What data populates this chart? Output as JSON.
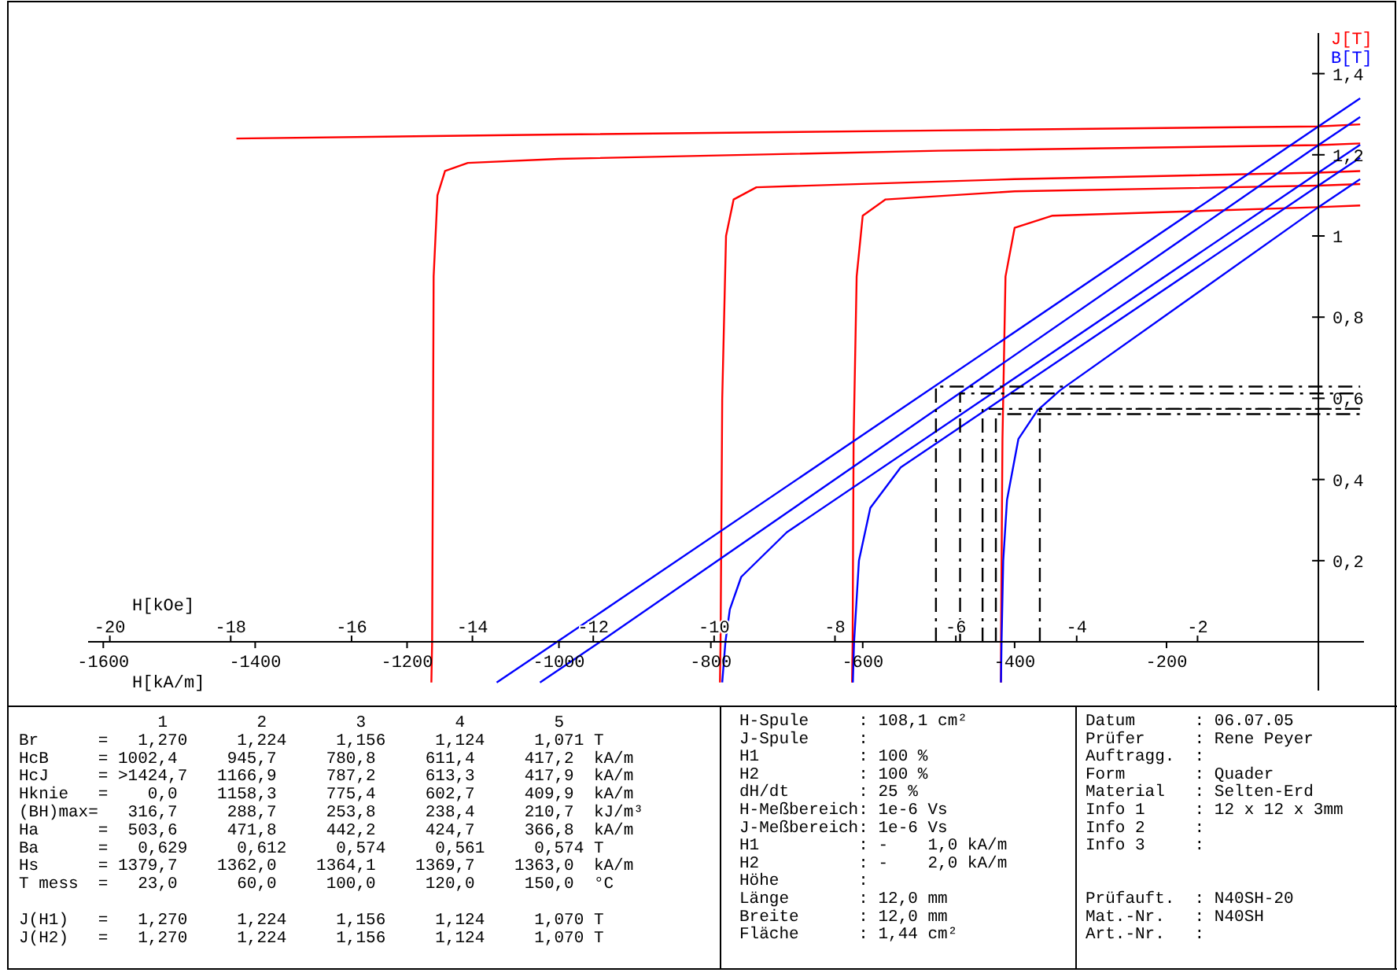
{
  "chart_data": {
    "type": "line",
    "xlabel": "H[kA/m]",
    "x2label": "H[kOe]",
    "xlim": [
      -1620,
      60
    ],
    "xticks": [
      -1600,
      -1400,
      -1200,
      -1000,
      -800,
      -600,
      -400,
      -200
    ],
    "x2lim": [
      -20.36,
      0.754
    ],
    "x2ticks": [
      -20,
      -18,
      -16,
      -14,
      -12,
      -10,
      -8,
      -6,
      -4,
      -2
    ],
    "ylim": [
      -0.12,
      1.5
    ],
    "yticks": [
      {
        "value": 0.2,
        "label": "0,2"
      },
      {
        "value": 0.4,
        "label": "0,4"
      },
      {
        "value": 0.6,
        "label": "0,6"
      },
      {
        "value": 0.8,
        "label": "0,8"
      },
      1,
      {
        "value": 1.2,
        "label": "1,2"
      },
      {
        "value": 1.4,
        "label": "1,4"
      }
    ],
    "legend": "top right",
    "line_style": "solid",
    "series": [
      {
        "name": "J[T]",
        "color": "#ff0000",
        "x": [
          -1424.7,
          -1000,
          -500,
          0,
          55
        ],
        "values": [
          1.24,
          1.25,
          1.26,
          1.27,
          1.275
        ]
      },
      {
        "color": "#ff0000",
        "x": [
          -1168,
          -1167,
          -1165,
          -1160,
          -1150,
          -1120,
          -1000,
          -500,
          0,
          55
        ],
        "values": [
          -0.1,
          0,
          0.9,
          1.1,
          1.16,
          1.18,
          1.19,
          1.21,
          1.224,
          1.228
        ]
      },
      {
        "color": "#ff0000",
        "x": [
          -788,
          -787.2,
          -785,
          -780,
          -770,
          -740,
          -400,
          0,
          55
        ],
        "values": [
          -0.1,
          0,
          0.6,
          1.0,
          1.09,
          1.12,
          1.14,
          1.156,
          1.16
        ]
      },
      {
        "color": "#ff0000",
        "x": [
          -614,
          -613.3,
          -612,
          -608,
          -600,
          -570,
          -400,
          0,
          55
        ],
        "values": [
          -0.1,
          0,
          0.5,
          0.9,
          1.05,
          1.09,
          1.11,
          1.124,
          1.128
        ]
      },
      {
        "color": "#ff0000",
        "x": [
          -418,
          -417.9,
          -416,
          -412,
          -400,
          -350,
          0,
          55
        ],
        "values": [
          -0.1,
          0,
          0.5,
          0.9,
          1.02,
          1.05,
          1.071,
          1.075
        ]
      },
      {
        "name": "B[T]",
        "color": "#0000ff",
        "x": [
          -1082,
          -1002.4,
          0,
          55
        ],
        "values": [
          -0.1,
          0,
          1.27,
          1.339
        ]
      },
      {
        "color": "#0000ff",
        "x": [
          -1025,
          -945.7,
          0,
          55
        ],
        "values": [
          -0.1,
          0,
          1.224,
          1.293
        ]
      },
      {
        "color": "#0000ff",
        "x": [
          -785,
          -780.8,
          -775,
          -760,
          -700,
          0,
          55
        ],
        "values": [
          -0.1,
          0,
          0.08,
          0.16,
          0.27,
          1.156,
          1.225
        ]
      },
      {
        "color": "#0000ff",
        "x": [
          -613,
          -611.4,
          -605,
          -590,
          -550,
          0,
          55
        ],
        "values": [
          -0.1,
          0,
          0.2,
          0.33,
          0.43,
          1.124,
          1.193
        ]
      },
      {
        "color": "#0000ff",
        "x": [
          -418,
          -417.2,
          -415,
          -410,
          -395,
          -370,
          -340,
          0,
          55
        ],
        "values": [
          -0.1,
          0,
          0.2,
          0.35,
          0.5,
          0.57,
          0.62,
          1.071,
          1.14
        ]
      },
      {
        "color": "#000000",
        "line_style": "dashed",
        "x": [
          -503.6,
          -503.6,
          55
        ],
        "values": [
          0,
          0.629,
          0.629
        ]
      },
      {
        "color": "#000000",
        "line_style": "dashed",
        "x": [
          -471.8,
          -471.8,
          55
        ],
        "values": [
          0,
          0.612,
          0.612
        ]
      },
      {
        "color": "#000000",
        "line_style": "dashed",
        "x": [
          -442.2,
          -442.2,
          55
        ],
        "values": [
          0,
          0.574,
          0.574
        ]
      },
      {
        "color": "#000000",
        "line_style": "dashed",
        "x": [
          -424.7,
          -424.7,
          55
        ],
        "values": [
          0,
          0.561,
          0.561
        ]
      },
      {
        "color": "#000000",
        "line_style": "dashed",
        "x": [
          -366.8,
          -366.8,
          55
        ],
        "values": [
          0,
          0.574,
          0.574
        ]
      }
    ],
    "annotations": [
      "              1         2         3         4         5",
      "Br      =   1,270     1,224     1,156     1,124     1,071 T",
      "HcB     = 1002,4     945,7     780,8     611,4     417,2  kA/m",
      "HcJ     = >1424,7   1166,9     787,2     613,3     417,9  kA/m",
      "Hknie   =    0,0    1158,3     775,4     602,7     409,9  kA/m",
      "(BH)max=   316,7     288,7     253,8     238,4     210,7  kJ/m³",
      "Ha      =  503,6     471,8     442,2     424,7     366,8  kA/m",
      "Ba      =   0,629     0,612     0,574     0,561     0,574 T",
      "Hs      = 1379,7    1362,0    1364,1    1369,7    1363,0  kA/m",
      "T mess  =   23,0      60,0     100,0     120,0     150,0  °C",
      "J(H1)   =   1,270     1,224     1,156     1,124     1,070 T",
      "J(H2)   =   1,270     1,224     1,156     1,124     1,070 T",
      "H-Spule     : 108,1 cm²",
      "J-Spule     :",
      "H1          : 100 %",
      "H2          : 100 %",
      "dH/dt       : 25 %",
      "H-Meßbereich: 1e-6 Vs",
      "J-Meßbereich: 1e-6 Vs",
      "H1          : -    1,0 kA/m",
      "H2          : -    2,0 kA/m",
      "Höhe        :",
      "Länge       : 12,0 mm",
      "Breite      : 12,0 mm",
      "Fläche      : 1,44 cm²",
      "Datum      : 06.07.05",
      "Prüfer     : Rene Peyer",
      "Auftragg.  :",
      "Form       : Quader",
      "Material   : Selten-Erd",
      "Info 1     : 12 x 12 x 3mm",
      "Info 2     :",
      "Info 3     :",
      "Prüfauft.  : N40SH-20",
      "Mat.-Nr.   : N40SH",
      "Art.-Nr.   :"
    ]
  }
}
